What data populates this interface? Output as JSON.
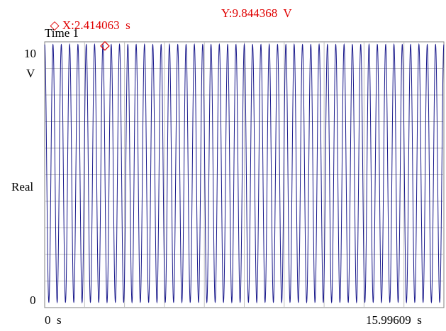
{
  "cursor": {
    "marker": "◇",
    "x_readout": "X:2.414063  s",
    "y_readout": "Y:9.844368  V",
    "x": 2.414063,
    "y": 9.844368,
    "color": "#e00000"
  },
  "chart_data": {
    "type": "line",
    "title": "Time 1",
    "ylabel": "Real",
    "yunit": "V",
    "ylim": [
      0,
      10
    ],
    "xlim": [
      0,
      15.99609
    ],
    "x_tick_labels": [
      "0  s",
      "15.99609  s"
    ],
    "y_tick_labels": [
      "10",
      "0"
    ],
    "grid": true,
    "series": [
      {
        "color": "#1a1a8c",
        "waveform": "sine",
        "cycles": 48,
        "min": 0.2,
        "max": 9.9
      }
    ]
  }
}
